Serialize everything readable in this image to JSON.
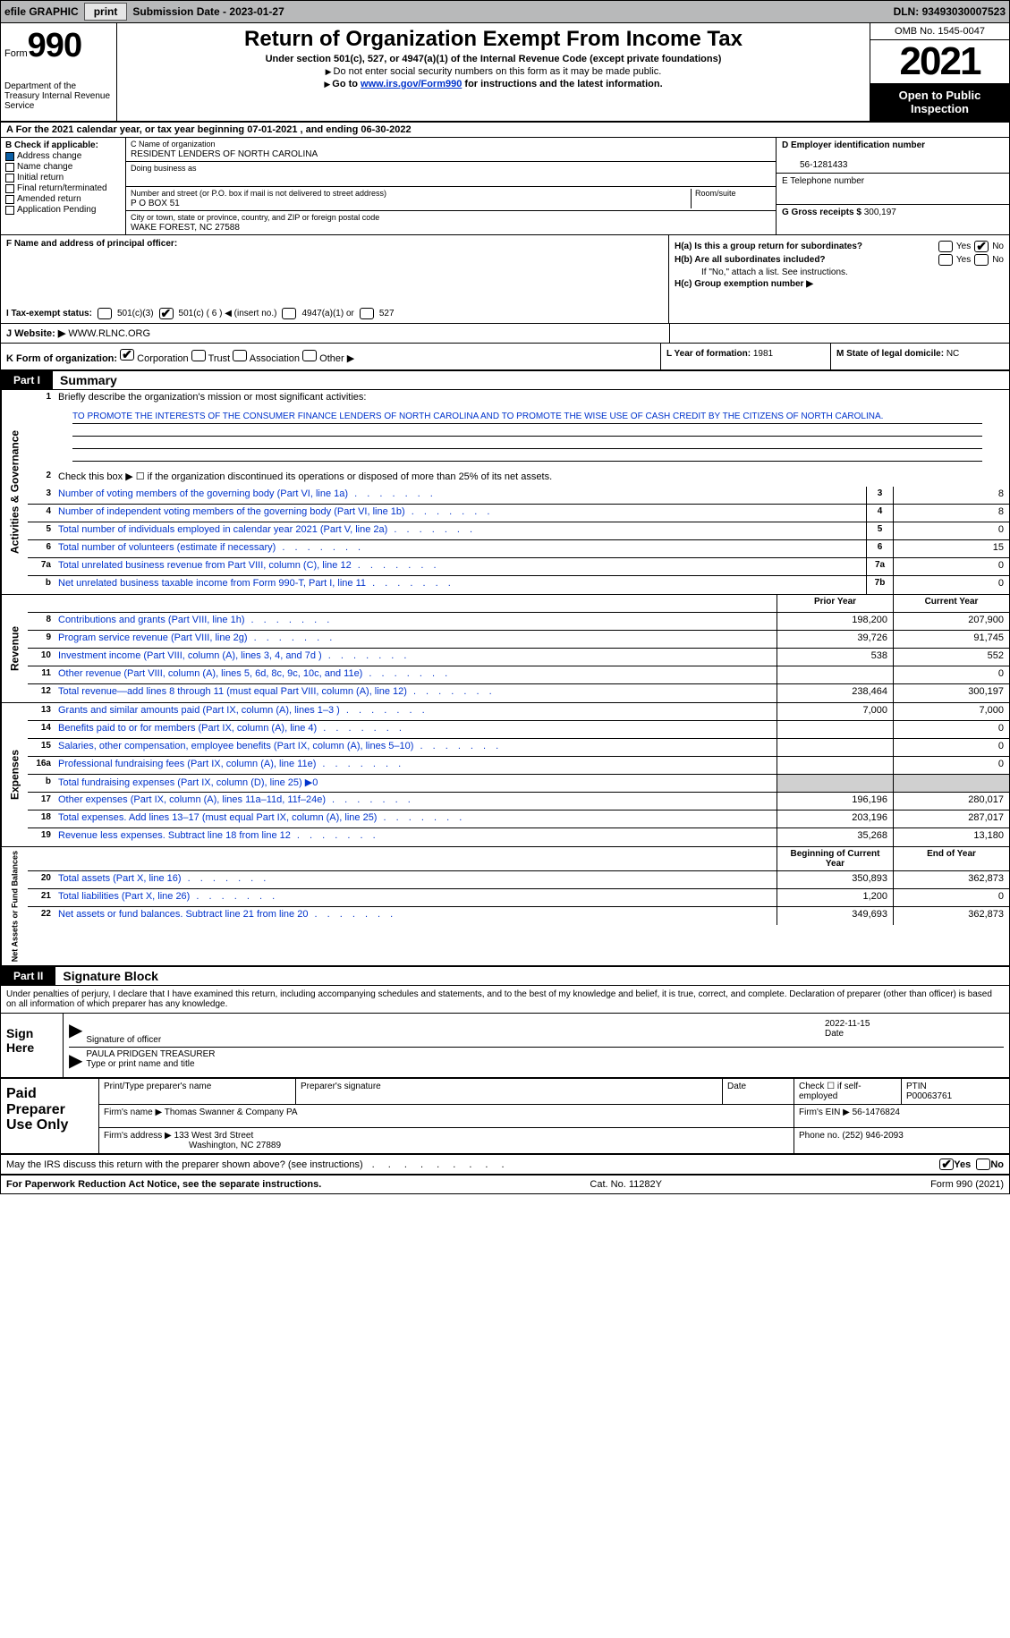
{
  "topbar": {
    "efile": "efile GRAPHIC",
    "print": "print",
    "subdate_label": "Submission Date - ",
    "subdate": "2023-01-27",
    "dln_label": "DLN: ",
    "dln": "93493030007523"
  },
  "header": {
    "form_label": "Form",
    "form_number": "990",
    "dept": "Department of the Treasury\nInternal Revenue Service",
    "title": "Return of Organization Exempt From Income Tax",
    "sub": "Under section 501(c), 527, or 4947(a)(1) of the Internal Revenue Code (except private foundations)",
    "note1": "Do not enter social security numbers on this form as it may be made public.",
    "note2_prefix": "Go to ",
    "note2_link": "www.irs.gov/Form990",
    "note2_suffix": " for instructions and the latest information.",
    "omb": "OMB No. 1545-0047",
    "year": "2021",
    "opi": "Open to Public Inspection"
  },
  "period": {
    "text_a": "A For the 2021 calendar year, or tax year beginning ",
    "begin": "07-01-2021",
    "text_b": " , and ending ",
    "end": "06-30-2022"
  },
  "secB": {
    "label": "B Check if applicable:",
    "items": [
      "Address change",
      "Name change",
      "Initial return",
      "Final return/terminated",
      "Amended return",
      "Application Pending"
    ],
    "checked_index": 0
  },
  "secC": {
    "name_label": "C Name of organization",
    "name": "RESIDENT LENDERS OF NORTH CAROLINA",
    "dba_label": "Doing business as",
    "dba": "",
    "street_label": "Number and street (or P.O. box if mail is not delivered to street address)",
    "room_label": "Room/suite",
    "street": "P O BOX 51",
    "city_label": "City or town, state or province, country, and ZIP or foreign postal code",
    "city": "WAKE FOREST, NC  27588"
  },
  "secD": {
    "ein_label": "D Employer identification number",
    "ein": "56-1281433",
    "phone_label": "E Telephone number",
    "phone": "",
    "gross_label": "G Gross receipts $ ",
    "gross": "300,197"
  },
  "secF": {
    "label": "F Name and address of principal officer:",
    "value": ""
  },
  "secH": {
    "ha_label": "H(a)  Is this a group return for subordinates?",
    "ha_no_checked": true,
    "hb_label": "H(b)  Are all subordinates included?",
    "hb_note": "If \"No,\" attach a list. See instructions.",
    "hc_label": "H(c)  Group exemption number ▶"
  },
  "secI": {
    "label": "I   Tax-exempt status:",
    "opts": [
      "501(c)(3)",
      "501(c) ( 6 ) ◀ (insert no.)",
      "4947(a)(1) or",
      "527"
    ],
    "checked_index": 1
  },
  "secJ": {
    "label": "J   Website: ▶ ",
    "value": "WWW.RLNC.ORG"
  },
  "secK": {
    "label": "K Form of organization:",
    "opts": [
      "Corporation",
      "Trust",
      "Association",
      "Other ▶"
    ],
    "checked_index": 0,
    "L_label": "L Year of formation: ",
    "L_val": "1981",
    "M_label": "M State of legal domicile: ",
    "M_val": "NC"
  },
  "part1": {
    "header": "Part I",
    "title": "Summary",
    "line1_label": "Briefly describe the organization's mission or most significant activities:",
    "line1_text": "TO PROMOTE THE INTERESTS OF THE CONSUMER FINANCE LENDERS OF NORTH CAROLINA AND TO PROMOTE THE WISE USE OF CASH CREDIT BY THE CITIZENS OF NORTH CAROLINA.",
    "line2_label": "Check this box ▶ ☐ if the organization discontinued its operations or disposed of more than 25% of its net assets."
  },
  "side_labels": {
    "gov": "Activities & Governance",
    "rev": "Revenue",
    "exp": "Expenses",
    "net": "Net Assets or Fund Balances"
  },
  "gov_rows": [
    {
      "n": "3",
      "label": "Number of voting members of the governing body (Part VI, line 1a)",
      "box": "3",
      "val": "8"
    },
    {
      "n": "4",
      "label": "Number of independent voting members of the governing body (Part VI, line 1b)",
      "box": "4",
      "val": "8"
    },
    {
      "n": "5",
      "label": "Total number of individuals employed in calendar year 2021 (Part V, line 2a)",
      "box": "5",
      "val": "0"
    },
    {
      "n": "6",
      "label": "Total number of volunteers (estimate if necessary)",
      "box": "6",
      "val": "15"
    },
    {
      "n": "7a",
      "label": "Total unrelated business revenue from Part VIII, column (C), line 12",
      "box": "7a",
      "val": "0"
    },
    {
      "n": "b",
      "label": "Net unrelated business taxable income from Form 990-T, Part I, line 11",
      "box": "7b",
      "val": "0"
    }
  ],
  "col_headers": {
    "prior": "Prior Year",
    "current": "Current Year"
  },
  "rev_rows": [
    {
      "n": "8",
      "label": "Contributions and grants (Part VIII, line 1h)",
      "prior": "198,200",
      "current": "207,900"
    },
    {
      "n": "9",
      "label": "Program service revenue (Part VIII, line 2g)",
      "prior": "39,726",
      "current": "91,745"
    },
    {
      "n": "10",
      "label": "Investment income (Part VIII, column (A), lines 3, 4, and 7d )",
      "prior": "538",
      "current": "552"
    },
    {
      "n": "11",
      "label": "Other revenue (Part VIII, column (A), lines 5, 6d, 8c, 9c, 10c, and 11e)",
      "prior": "",
      "current": "0"
    },
    {
      "n": "12",
      "label": "Total revenue—add lines 8 through 11 (must equal Part VIII, column (A), line 12)",
      "prior": "238,464",
      "current": "300,197"
    }
  ],
  "exp_rows": [
    {
      "n": "13",
      "label": "Grants and similar amounts paid (Part IX, column (A), lines 1–3 )",
      "prior": "7,000",
      "current": "7,000"
    },
    {
      "n": "14",
      "label": "Benefits paid to or for members (Part IX, column (A), line 4)",
      "prior": "",
      "current": "0"
    },
    {
      "n": "15",
      "label": "Salaries, other compensation, employee benefits (Part IX, column (A), lines 5–10)",
      "prior": "",
      "current": "0"
    },
    {
      "n": "16a",
      "label": "Professional fundraising fees (Part IX, column (A), line 11e)",
      "prior": "",
      "current": "0"
    },
    {
      "n": "b",
      "label": "Total fundraising expenses (Part IX, column (D), line 25) ▶0",
      "prior": "shade",
      "current": "shade"
    },
    {
      "n": "17",
      "label": "Other expenses (Part IX, column (A), lines 11a–11d, 11f–24e)",
      "prior": "196,196",
      "current": "280,017"
    },
    {
      "n": "18",
      "label": "Total expenses. Add lines 13–17 (must equal Part IX, column (A), line 25)",
      "prior": "203,196",
      "current": "287,017"
    },
    {
      "n": "19",
      "label": "Revenue less expenses. Subtract line 18 from line 12",
      "prior": "35,268",
      "current": "13,180"
    }
  ],
  "net_headers": {
    "begin": "Beginning of Current Year",
    "end": "End of Year"
  },
  "net_rows": [
    {
      "n": "20",
      "label": "Total assets (Part X, line 16)",
      "prior": "350,893",
      "current": "362,873"
    },
    {
      "n": "21",
      "label": "Total liabilities (Part X, line 26)",
      "prior": "1,200",
      "current": "0"
    },
    {
      "n": "22",
      "label": "Net assets or fund balances. Subtract line 21 from line 20",
      "prior": "349,693",
      "current": "362,873"
    }
  ],
  "part2": {
    "header": "Part II",
    "title": "Signature Block",
    "decl": "Under penalties of perjury, I declare that I have examined this return, including accompanying schedules and statements, and to the best of my knowledge and belief, it is true, correct, and complete. Declaration of preparer (other than officer) is based on all information of which preparer has any knowledge."
  },
  "sign": {
    "label": "Sign Here",
    "sig_label": "Signature of officer",
    "date": "2022-11-15",
    "date_label": "Date",
    "name": "PAULA PRIDGEN  TREASURER",
    "name_label": "Type or print name and title"
  },
  "paid": {
    "label": "Paid Preparer Use Only",
    "h_name": "Print/Type preparer's name",
    "h_sig": "Preparer's signature",
    "h_date": "Date",
    "h_check": "Check ☐ if self-employed",
    "h_ptin_label": "PTIN",
    "h_ptin": "P00063761",
    "firm_label": "Firm's name    ▶ ",
    "firm": "Thomas Swanner & Company PA",
    "ein_label": "Firm's EIN ▶ ",
    "ein": "56-1476824",
    "addr_label": "Firm's address ▶ ",
    "addr1": "133 West 3rd Street",
    "addr2": "Washington, NC  27889",
    "phone_label": "Phone no. ",
    "phone": "(252) 946-2093"
  },
  "discuss": {
    "label": "May the IRS discuss this return with the preparer shown above? (see instructions)",
    "yes_checked": true
  },
  "footer": {
    "left": "For Paperwork Reduction Act Notice, see the separate instructions.",
    "center": "Cat. No. 11282Y",
    "right": "Form 990 (2021)"
  },
  "yn": {
    "yes": "Yes",
    "no": "No"
  }
}
